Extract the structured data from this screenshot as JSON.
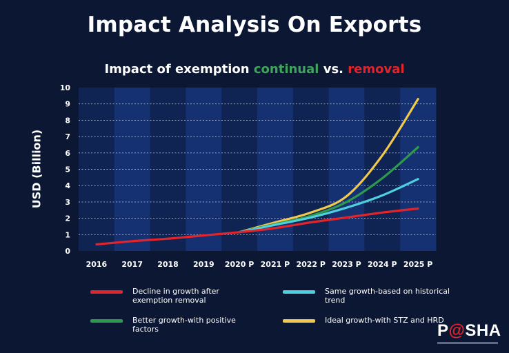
{
  "header": {
    "title": "Impact Analysis On Exports",
    "subtitle_prefix": "Impact of exemption ",
    "subtitle_green": "continual",
    "subtitle_middle": " vs. ",
    "subtitle_red": "removal"
  },
  "colors": {
    "background": "#0b1733",
    "plot_band_dark": "#0f2452",
    "plot_band_light": "#163172",
    "red": "#e3242b",
    "cyan": "#4fd0e0",
    "green": "#2e9a4c",
    "yellow": "#f2c94c"
  },
  "chart_data": {
    "type": "line",
    "ylabel": "USD (Billion)",
    "xlabel": "",
    "ylim": [
      0,
      10
    ],
    "yticks": [
      "0",
      "1",
      "2",
      "3",
      "4",
      "5",
      "6",
      "7",
      "8",
      "9",
      "10"
    ],
    "x": [
      "2016",
      "2017",
      "2018",
      "2019",
      "2020 P",
      "2021 P",
      "2022 P",
      "2023 P",
      "2024 P",
      "2025 P"
    ],
    "grid": true,
    "legend_position": "bottom",
    "series": [
      {
        "name": "Decline in growth after exemption removal",
        "color": "#e3242b",
        "values": [
          0.4,
          0.6,
          0.75,
          0.95,
          1.15,
          1.4,
          1.75,
          2.05,
          2.35,
          2.6
        ]
      },
      {
        "name": "Same growth-based on historical trend",
        "color": "#4fd0e0",
        "values": [
          null,
          null,
          null,
          null,
          1.15,
          1.6,
          2.05,
          2.65,
          3.4,
          4.4
        ]
      },
      {
        "name": "Better growth-with positive factors",
        "color": "#2e9a4c",
        "values": [
          null,
          null,
          null,
          null,
          1.15,
          1.65,
          2.15,
          3.0,
          4.45,
          6.35
        ]
      },
      {
        "name": "Ideal growth-with STZ and HRD",
        "color": "#f2c94c",
        "values": [
          null,
          null,
          null,
          null,
          1.15,
          1.75,
          2.35,
          3.35,
          5.85,
          9.3
        ]
      }
    ]
  },
  "legend": [
    {
      "label": "Decline in growth after exemption removal",
      "color": "#e3242b"
    },
    {
      "label": "Same growth-based on historical trend",
      "color": "#4fd0e0"
    },
    {
      "label": "Better growth-with positive factors",
      "color": "#2e9a4c"
    },
    {
      "label": "Ideal growth-with STZ and HRD",
      "color": "#f2c94c"
    }
  ],
  "logo": {
    "text_pre": "P",
    "text_at": "@",
    "text_post": "SHA"
  }
}
